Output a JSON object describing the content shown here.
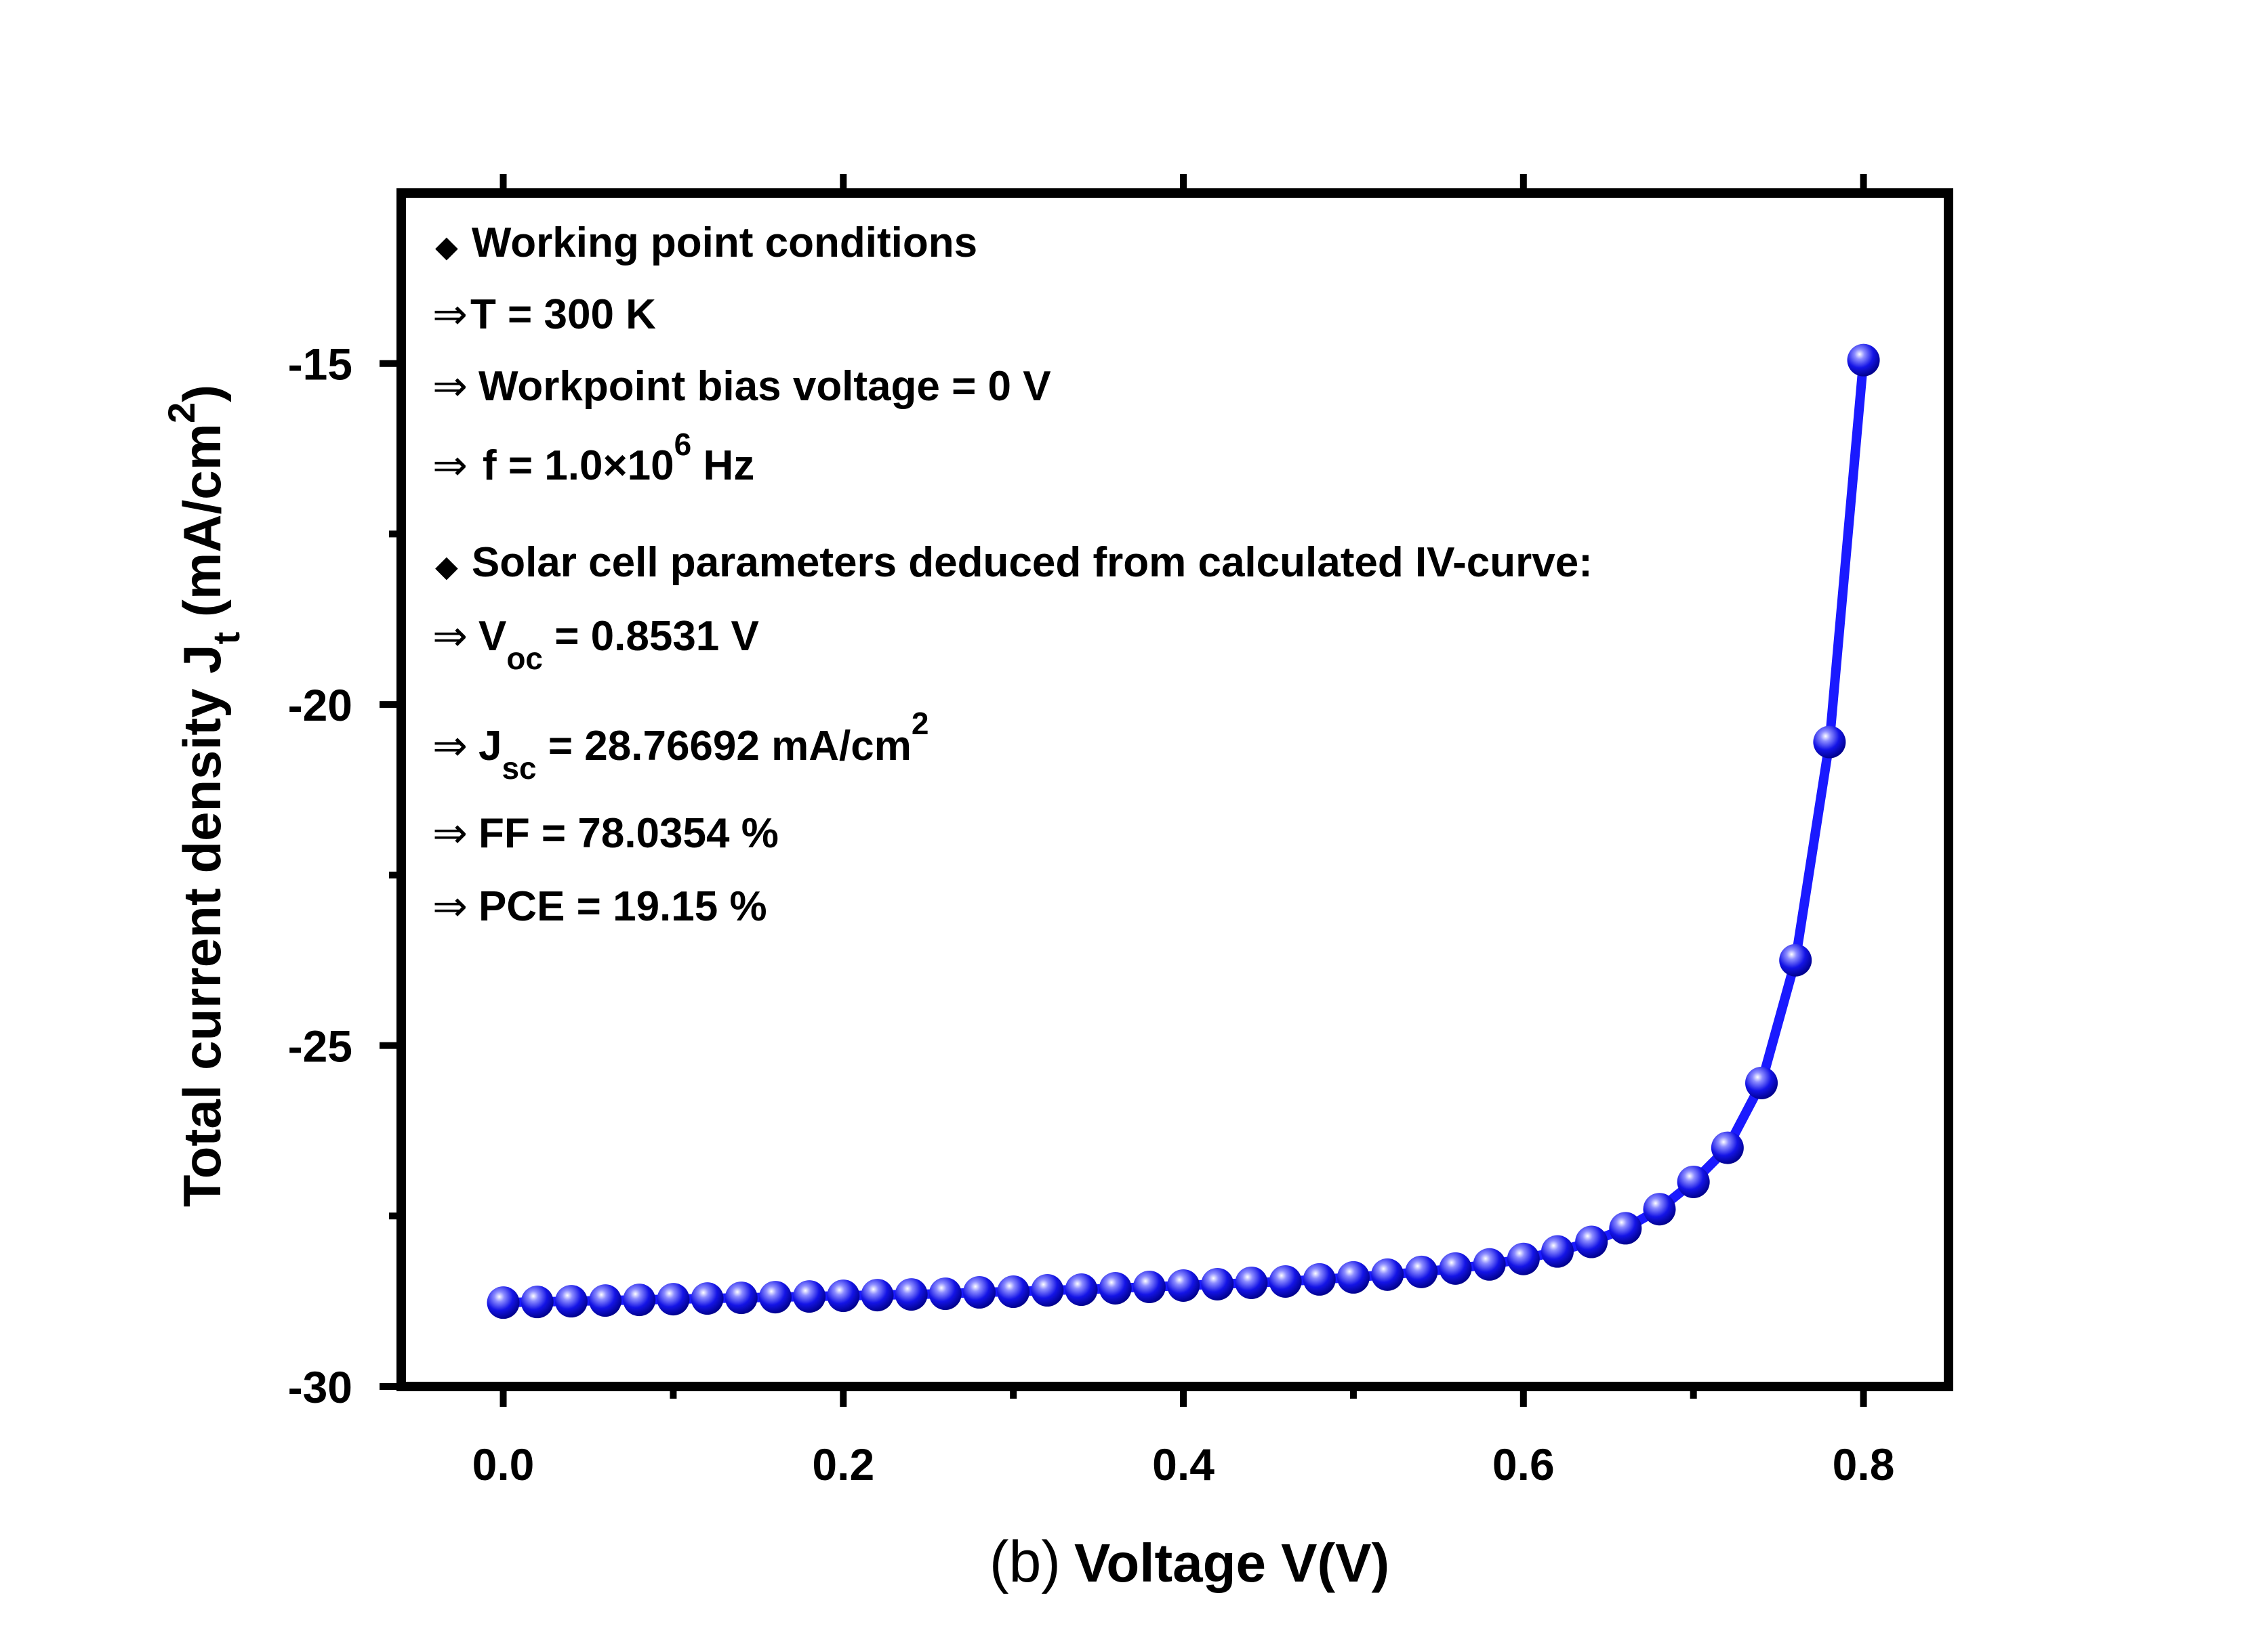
{
  "chart_data": {
    "type": "scatter",
    "xlabel_prefix": "(b)",
    "xlabel": "Voltage V(V)",
    "ylabel": "Total current density J",
    "ylabel_sub": "t",
    "ylabel_unit_open": " (mA/cm",
    "ylabel_unit_sup": "2",
    "ylabel_unit_close": ")",
    "xlim": [
      -0.06,
      0.85
    ],
    "ylim": [
      -30,
      -12.5
    ],
    "x_ticks": [
      0.0,
      0.2,
      0.4,
      0.6,
      0.8
    ],
    "x_tick_labels": [
      "0.0",
      "0.2",
      "0.4",
      "0.6",
      "0.8"
    ],
    "x_minor_ticks": [
      0.1,
      0.3,
      0.5,
      0.7
    ],
    "y_ticks": [
      -15,
      -20,
      -25,
      -30
    ],
    "y_tick_labels": [
      "-15",
      "-20",
      "-25",
      "-30"
    ],
    "y_minor_ticks": [
      -17.5,
      -22.5,
      -27.5
    ],
    "grid": false,
    "legend": "none",
    "series": [
      {
        "color": "#1a1aff",
        "marker": "sphere",
        "x": [
          0.0,
          0.02,
          0.04,
          0.06,
          0.08,
          0.1,
          0.12,
          0.14,
          0.16,
          0.18,
          0.2,
          0.22,
          0.24,
          0.26,
          0.28,
          0.3,
          0.32,
          0.34,
          0.36,
          0.38,
          0.4,
          0.42,
          0.44,
          0.46,
          0.48,
          0.5,
          0.52,
          0.54,
          0.56,
          0.58,
          0.6,
          0.62,
          0.64,
          0.66,
          0.68,
          0.7,
          0.72,
          0.74,
          0.76,
          0.78,
          0.8
        ],
        "y": [
          -28.77,
          -28.76,
          -28.75,
          -28.74,
          -28.73,
          -28.72,
          -28.71,
          -28.7,
          -28.69,
          -28.68,
          -28.67,
          -28.66,
          -28.65,
          -28.64,
          -28.62,
          -28.61,
          -28.59,
          -28.58,
          -28.56,
          -28.54,
          -28.52,
          -28.5,
          -28.48,
          -28.46,
          -28.43,
          -28.4,
          -28.36,
          -28.32,
          -28.27,
          -28.21,
          -28.13,
          -28.02,
          -27.88,
          -27.68,
          -27.4,
          -27.0,
          -26.5,
          -25.55,
          -23.75,
          -20.55,
          -14.95
        ]
      }
    ]
  },
  "annotations": {
    "header1": "Working point conditions",
    "t_line": "T = 300 K",
    "bias_line": "Workpoint bias voltage = 0 V",
    "f_pre": "f = 1.0×10",
    "f_sup": "6",
    "f_post": " Hz",
    "header2": "Solar cell parameters deduced from calculated IV-curve:",
    "voc_pre": "V",
    "voc_sub": "oc",
    "voc_post": " = 0.8531 V",
    "jsc_pre": "J",
    "jsc_sub": "sc",
    "jsc_post": " = 28.76692 mA/cm",
    "jsc_sup": "2",
    "ff_line": "FF = 78.0354 %",
    "pce_line": "PCE = 19.15 %",
    "bullet": "◆",
    "arrow": "⇒"
  }
}
